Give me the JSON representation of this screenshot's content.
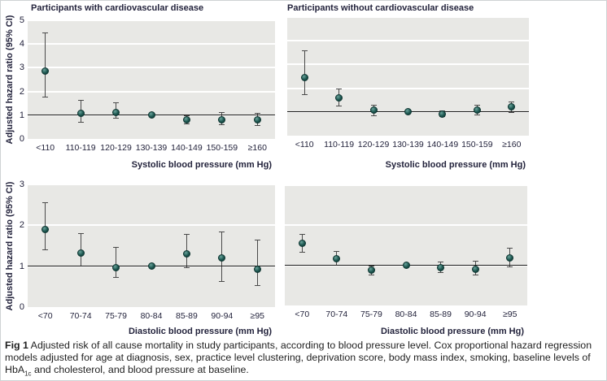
{
  "figure": {
    "caption": {
      "label": "Fig 1",
      "text_before_sub": " Adjusted risk of all cause mortality in study participants, according to blood pressure level. Cox proportional hazard regression models adjusted for age at diagnosis, sex, practice level clustering, deprivation score, body mass index, smoking, baseline levels of HbA",
      "subscript": "1c",
      "text_after_sub": " and cholesterol, and blood pressure at baseline."
    },
    "colors": {
      "marker": "#1d5750",
      "marker_edge": "#0e3531",
      "error_bar": "#4a4a4a",
      "panel_bg": "#e8e8e5",
      "grid": "#ffffff",
      "reference": "#1a1a1a",
      "text": "#23233c"
    }
  },
  "chart_data": [
    {
      "type": "scatter",
      "panel": "top-left",
      "title": "Participants with cardiovascular disease",
      "xlabel": "Systolic blood pressure (mm Hg)",
      "ylabel": "Adjusted hazard ratio (95% CI)",
      "ylim": [
        0,
        5
      ],
      "yticks": [
        0,
        1,
        2,
        3,
        4,
        5
      ],
      "ytick_labels_shown": true,
      "grid": true,
      "legend": "none",
      "reference_line": 1,
      "categories": [
        "<110",
        "110-119",
        "120-129",
        "130-139",
        "140-149",
        "150-159",
        "≥160"
      ],
      "series": [
        {
          "name": "Adjusted hazard ratio (95% CI)",
          "values": [
            2.85,
            1.07,
            1.12,
            1.0,
            0.8,
            0.82,
            0.8
          ],
          "ci_lower": [
            1.75,
            0.7,
            0.85,
            0.96,
            0.62,
            0.57,
            0.55
          ],
          "ci_upper": [
            4.5,
            1.63,
            1.55,
            1.04,
            1.0,
            1.12,
            1.1
          ]
        }
      ]
    },
    {
      "type": "scatter",
      "panel": "top-right",
      "title": "Participants without cardiovascular disease",
      "xlabel": "Systolic blood pressure (mm Hg)",
      "ylabel": "Adjusted hazard ratio (95% CI)",
      "ylim": [
        0,
        5
      ],
      "yticks": [
        0,
        1,
        2,
        3,
        4,
        5
      ],
      "ytick_labels_shown": false,
      "grid": true,
      "legend": "none",
      "reference_line": 1,
      "categories": [
        "<110",
        "110-119",
        "120-129",
        "130-139",
        "140-149",
        "150-159",
        "≥160"
      ],
      "series": [
        {
          "name": "Adjusted hazard ratio (95% CI)",
          "values": [
            2.45,
            1.6,
            1.08,
            1.0,
            0.9,
            1.08,
            1.2
          ],
          "ci_lower": [
            1.7,
            1.25,
            0.82,
            0.96,
            0.78,
            0.85,
            0.95
          ],
          "ci_upper": [
            3.6,
            2.0,
            1.3,
            1.04,
            1.06,
            1.3,
            1.45
          ]
        }
      ]
    },
    {
      "type": "scatter",
      "panel": "bottom-left",
      "title": "",
      "xlabel": "Diastolic blood pressure (mm Hg)",
      "ylabel": "Adjusted hazard ratio (95% CI)",
      "ylim": [
        0,
        3
      ],
      "yticks": [
        0,
        1,
        2,
        3
      ],
      "ytick_labels_shown": true,
      "grid": true,
      "legend": "none",
      "reference_line": 1,
      "categories": [
        "<70",
        "70-74",
        "75-79",
        "80-84",
        "85-89",
        "90-94",
        "≥95"
      ],
      "series": [
        {
          "name": "Adjusted hazard ratio (95% CI)",
          "values": [
            1.9,
            1.32,
            0.97,
            1.0,
            1.3,
            1.21,
            0.92
          ],
          "ci_lower": [
            1.4,
            1.0,
            0.72,
            0.97,
            0.96,
            0.62,
            0.52
          ],
          "ci_upper": [
            2.57,
            1.8,
            1.47,
            1.03,
            1.78,
            1.85,
            1.65
          ]
        }
      ]
    },
    {
      "type": "scatter",
      "panel": "bottom-right",
      "title": "",
      "xlabel": "Diastolic blood pressure (mm Hg)",
      "ylabel": "Adjusted hazard ratio (95% CI)",
      "ylim": [
        0,
        3
      ],
      "yticks": [
        0,
        1,
        2,
        3
      ],
      "ytick_labels_shown": false,
      "grid": true,
      "legend": "none",
      "reference_line": 1,
      "categories": [
        "<70",
        "70-74",
        "75-79",
        "80-84",
        "85-89",
        "90-94",
        "≥95"
      ],
      "series": [
        {
          "name": "Adjusted hazard ratio (95% CI)",
          "values": [
            1.56,
            1.17,
            0.88,
            1.0,
            0.95,
            0.91,
            1.18
          ],
          "ci_lower": [
            1.32,
            0.99,
            0.76,
            0.97,
            0.81,
            0.74,
            0.96
          ],
          "ci_upper": [
            1.78,
            1.35,
            1.0,
            1.03,
            1.09,
            1.11,
            1.44
          ]
        }
      ]
    }
  ]
}
